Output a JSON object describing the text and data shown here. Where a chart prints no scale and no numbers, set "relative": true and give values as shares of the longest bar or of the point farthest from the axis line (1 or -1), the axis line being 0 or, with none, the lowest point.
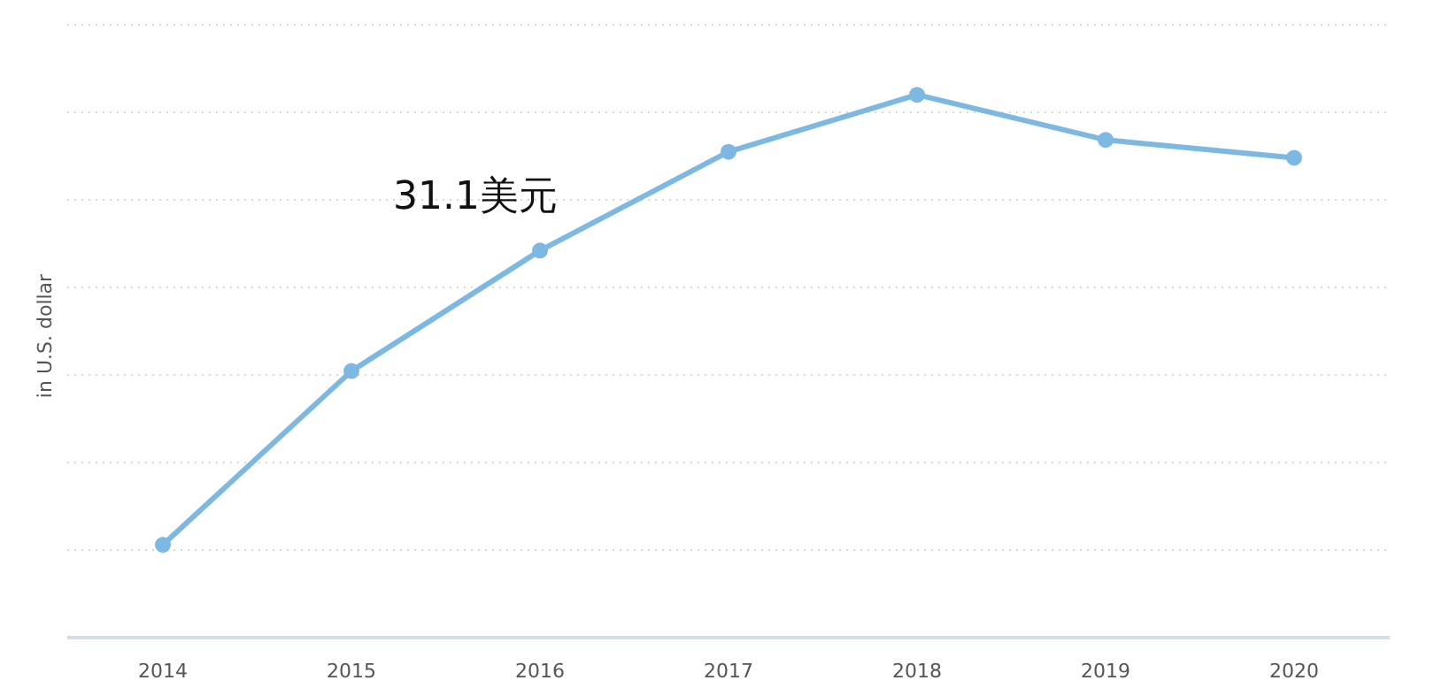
{
  "chart_data": {
    "type": "line",
    "relative": true,
    "ylabel": "in U.S. dollar",
    "categories": [
      "2014",
      "2015",
      "2016",
      "2017",
      "2018",
      "2019",
      "2020"
    ],
    "series": [
      {
        "color": "#7cb8e2",
        "values": [
          0.171,
          0.491,
          0.713,
          0.895,
          1,
          0.917,
          0.884
        ]
      }
    ],
    "annotations": [
      "31.1美元"
    ],
    "grid": "y",
    "marker": "circle",
    "line_style": "solid"
  }
}
